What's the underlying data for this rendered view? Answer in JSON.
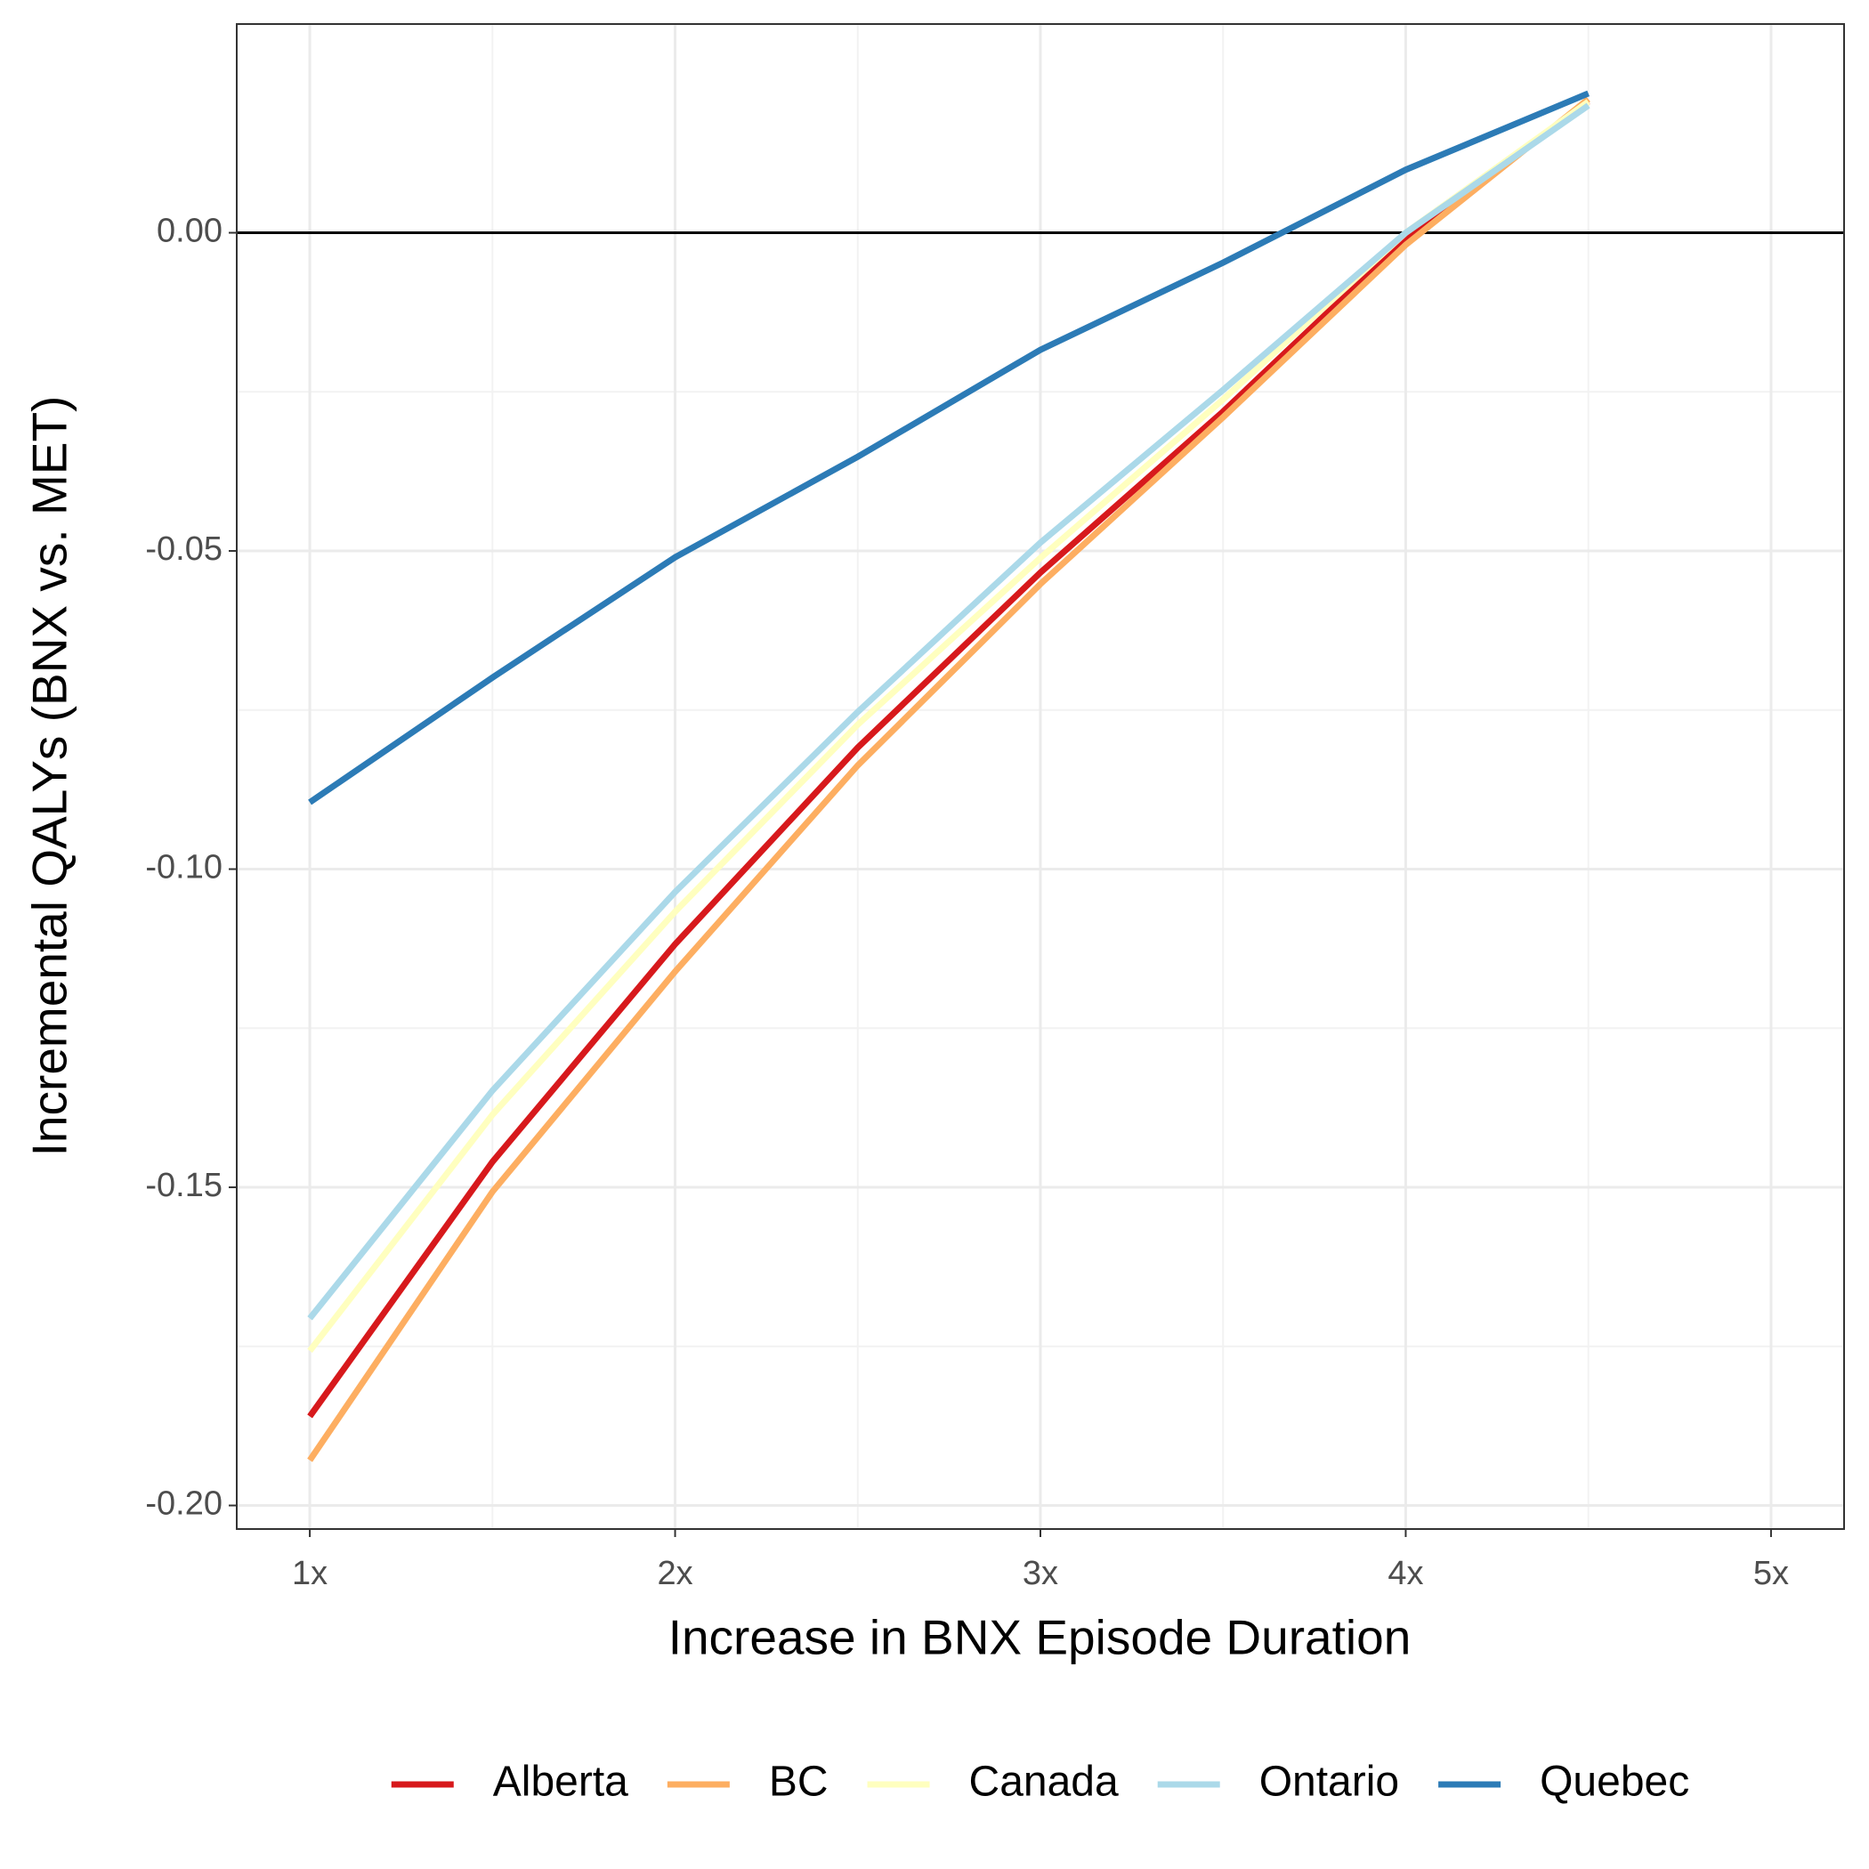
{
  "chart_data": {
    "type": "line",
    "x_label": "Increase in BNX Episode Duration",
    "y_label": "Incremental QALYs (BNX vs. MET)",
    "x": [
      1,
      1.5,
      2,
      2.5,
      3,
      3.5,
      4,
      4.5
    ],
    "series": [
      {
        "name": "Alberta",
        "color": "#d7191c",
        "values": [
          -0.186,
          -0.146,
          -0.1118,
          -0.0809,
          -0.0534,
          -0.0281,
          -0.0009,
          0.0206
        ]
      },
      {
        "name": "BC",
        "color": "#fdae61",
        "values": [
          -0.1929,
          -0.1507,
          -0.1161,
          -0.0837,
          -0.0552,
          -0.029,
          -0.0019,
          0.021
        ]
      },
      {
        "name": "Canada",
        "color": "#ffffbf",
        "values": [
          -0.1757,
          -0.1386,
          -0.1067,
          -0.0773,
          -0.0511,
          -0.0262,
          0.0,
          0.0206
        ]
      },
      {
        "name": "Ontario",
        "color": "#abd9e9",
        "values": [
          -0.1706,
          -0.1348,
          -0.1036,
          -0.0753,
          -0.0487,
          -0.0247,
          0.0,
          0.02
        ]
      },
      {
        "name": "Quebec",
        "color": "#2c7bb6",
        "values": [
          -0.0895,
          -0.0699,
          -0.051,
          -0.0352,
          -0.0184,
          -0.0047,
          0.0099,
          0.0219
        ]
      }
    ],
    "xlim": [
      0.8,
      5.2
    ],
    "xticks": [
      {
        "value": 1,
        "label": "1x"
      },
      {
        "value": 2,
        "label": "2x"
      },
      {
        "value": 3,
        "label": "3x"
      },
      {
        "value": 4,
        "label": "4x"
      },
      {
        "value": 5,
        "label": "5x"
      }
    ],
    "ylim": [
      -0.2037,
      0.0328
    ],
    "yticks": [
      {
        "value": -0.2,
        "label": "-0.20"
      },
      {
        "value": -0.15,
        "label": "-0.15"
      },
      {
        "value": -0.1,
        "label": "-0.10"
      },
      {
        "value": -0.05,
        "label": "-0.05"
      },
      {
        "value": 0,
        "label": "0.00"
      }
    ],
    "reference_line": 0,
    "grid": true,
    "legend": "bottom"
  }
}
